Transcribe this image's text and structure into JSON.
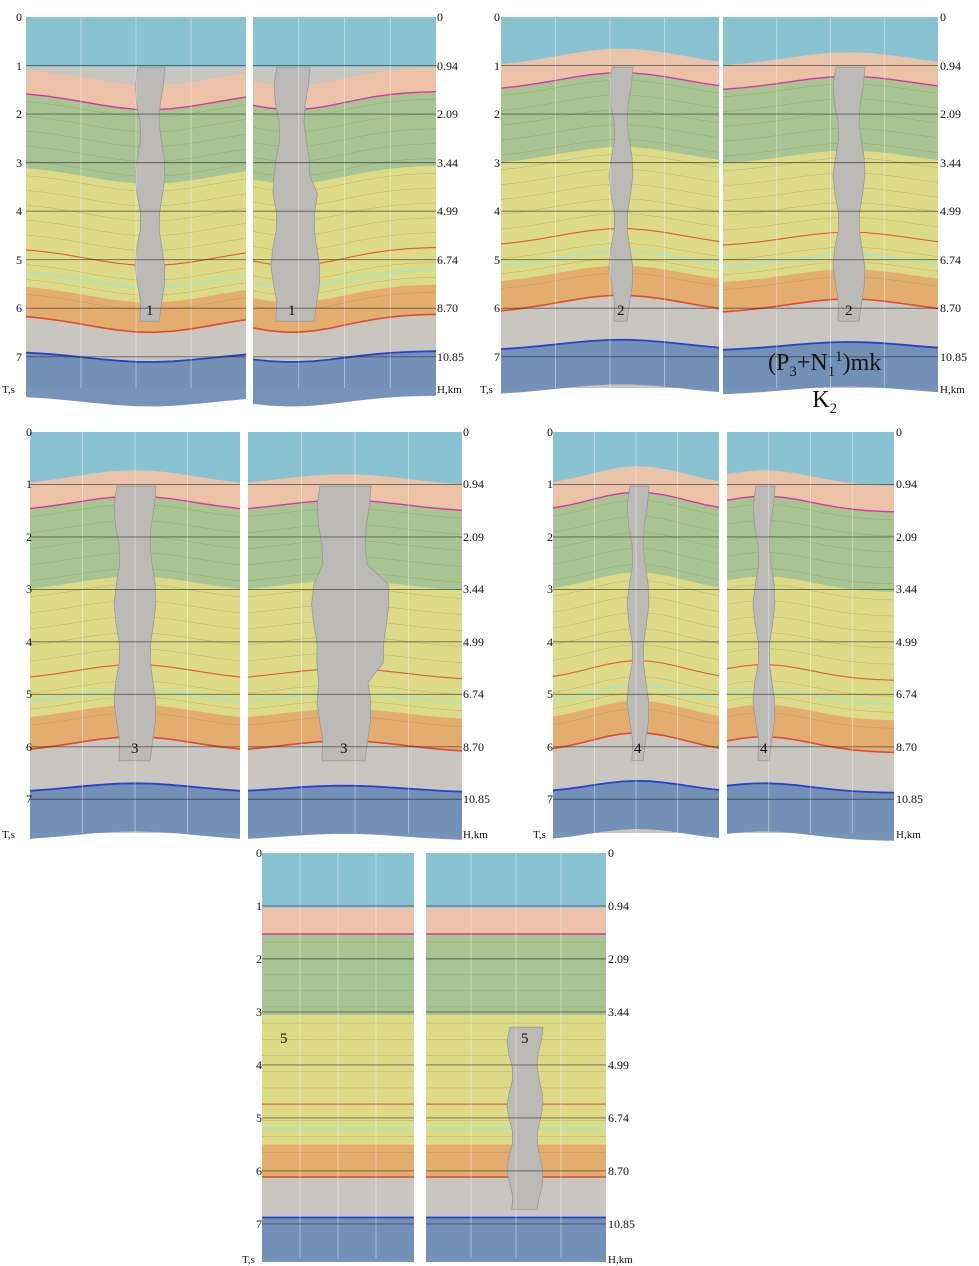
{
  "time_ticks": [
    "0",
    "1",
    "2",
    "3",
    "4",
    "5",
    "6",
    "7"
  ],
  "depth_ticks": [
    "0",
    "0.94",
    "2.09",
    "3.44",
    "4.99",
    "6.74",
    "8.70",
    "10.85"
  ],
  "time_unit": "T,s",
  "depth_unit": "H,km",
  "figures": [
    {
      "id": "1",
      "label": "1"
    },
    {
      "id": "2",
      "label": "2"
    },
    {
      "id": "3",
      "label": "3"
    },
    {
      "id": "4",
      "label": "4"
    },
    {
      "id": "5",
      "label": "5"
    }
  ],
  "formula": {
    "P": "P",
    "P_sub": "3",
    "plus": "+",
    "N": "N",
    "N_sub": "1",
    "N_sup": "1",
    "mk": "mk",
    "K": "K",
    "K_sub": "2"
  },
  "colors": {
    "water": "#86c3d3",
    "seabed_layer": "#eec3a8",
    "green_layer": "#a6c48f",
    "yellow_layer": "#dedc84",
    "bright_yellow": "#e8e45a",
    "orange_layer": "#e5ac6a",
    "basement": "#c9c6c0",
    "deep_blue": "#6f8db6",
    "salt": "#bcbab6",
    "red_horizon": "#e04a2e",
    "blue_horizon": "#2a3fd0",
    "magenta_horizon": "#d03aa8",
    "cyan_horizon": "#9ee6d6"
  }
}
